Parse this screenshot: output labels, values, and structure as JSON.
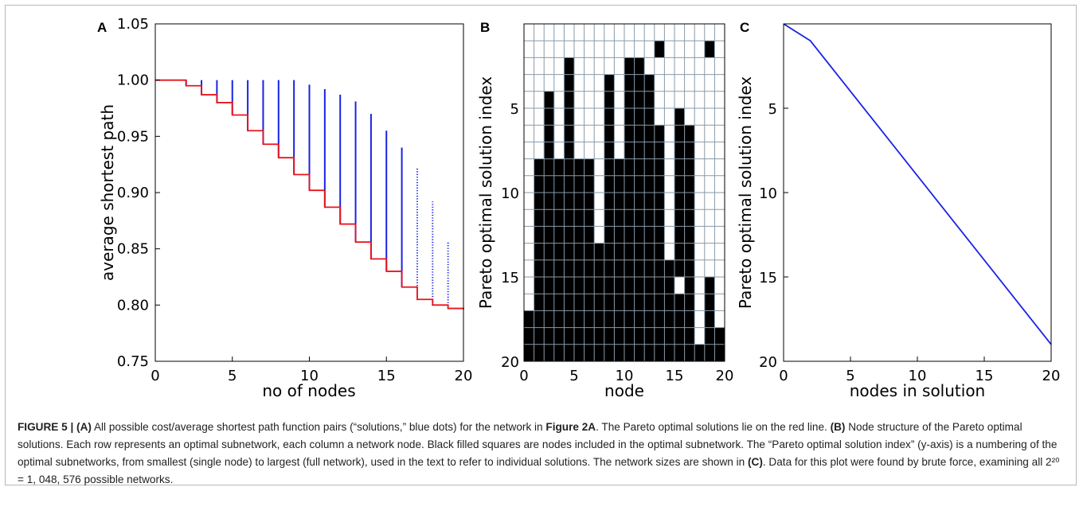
{
  "figure": {
    "panels": [
      {
        "letter": "A",
        "xlabel": "no of nodes",
        "ylabel": "average shortest path",
        "xticks": [
          "0",
          "5",
          "10",
          "15",
          "20"
        ],
        "yticks": [
          "0.75",
          "0.80",
          "0.85",
          "0.90",
          "0.95",
          "1.00",
          "1.05"
        ]
      },
      {
        "letter": "B",
        "xlabel": "node",
        "ylabel": "Pareto optimal solution index",
        "xticks": [
          "0",
          "5",
          "10",
          "15",
          "20"
        ],
        "yticks": [
          "5",
          "10",
          "15",
          "20"
        ]
      },
      {
        "letter": "C",
        "xlabel": "nodes in solution",
        "ylabel": "Pareto optimal solution index",
        "xticks": [
          "0",
          "5",
          "10",
          "15",
          "20"
        ],
        "yticks": [
          "5",
          "10",
          "15",
          "20"
        ]
      }
    ],
    "colors": {
      "pareto_line": "#e8141c",
      "solutions": "#1a22e6",
      "filled": "#000000",
      "grid": "#8a9aa8",
      "line_c": "#1a22e6"
    }
  },
  "caption": {
    "segments": [
      {
        "text": "FIGURE 5 | (A)",
        "bold": true
      },
      {
        "text": " All possible cost/average shortest path function pairs (“solutions,” blue dots) for the network in ",
        "bold": false
      },
      {
        "text": "Figure 2A",
        "bold": true
      },
      {
        "text": ". The Pareto optimal solutions lie on the red line. ",
        "bold": false
      },
      {
        "text": "(B)",
        "bold": true
      },
      {
        "text": " Node structure of the Pareto optimal solutions. Each row represents an optimal subnetwork, each column a network node. Black filled squares are nodes included in the optimal subnetwork. The “Pareto optimal solution index” (y-axis) is a numbering of the optimal subnetworks, from smallest (single node) to largest (full network), used in the text to refer to individual solutions. The network sizes are shown in ",
        "bold": false
      },
      {
        "text": "(C)",
        "bold": true
      },
      {
        "text": ". Data for this plot were found by brute force, examining all ",
        "bold": false
      },
      {
        "text": "2²⁰ = 1, 048, 576 possible networks.",
        "bold": false
      }
    ]
  },
  "chart_data": [
    {
      "type": "scatter",
      "panel": "A",
      "xlabel": "no of nodes",
      "ylabel": "average shortest path",
      "xlim": [
        0,
        20
      ],
      "ylim": [
        0.75,
        1.05
      ],
      "grid": false,
      "pareto_line": {
        "x": [
          0,
          1,
          2,
          3,
          4,
          5,
          6,
          7,
          8,
          9,
          10,
          11,
          12,
          13,
          14,
          15,
          16,
          17,
          18,
          19,
          20
        ],
        "y": [
          1.0,
          1.0,
          0.995,
          0.987,
          0.98,
          0.969,
          0.955,
          0.943,
          0.931,
          0.916,
          0.902,
          0.887,
          0.872,
          0.856,
          0.841,
          0.83,
          0.816,
          0.805,
          0.8,
          0.797,
          0.796
        ]
      },
      "solution_ranges": {
        "x": [
          1,
          2,
          3,
          4,
          5,
          6,
          7,
          8,
          9,
          10,
          11,
          12,
          13,
          14,
          15,
          16,
          17,
          18,
          19
        ],
        "ymax": [
          1.0,
          1.0,
          1.0,
          1.0,
          1.0,
          1.0,
          1.0,
          1.0,
          1.0,
          0.996,
          0.992,
          0.987,
          0.981,
          0.97,
          0.955,
          0.94,
          0.922,
          0.892,
          0.856
        ]
      }
    },
    {
      "type": "heatmap",
      "panel": "B",
      "xlabel": "node",
      "ylabel": "Pareto optimal solution index",
      "xlim": [
        0,
        20
      ],
      "ylim": [
        20,
        0
      ],
      "cols": 20,
      "rows": 20,
      "filled_columns": [
        {
          "node": 0,
          "from": 17
        },
        {
          "node": 1,
          "from": 8
        },
        {
          "node": 2,
          "from": 4
        },
        {
          "node": 3,
          "from": 8
        },
        {
          "node": 4,
          "from": 2
        },
        {
          "node": 5,
          "from": 8
        },
        {
          "node": 6,
          "from": 8
        },
        {
          "node": 7,
          "from": 8,
          "gaps": [
            [
              8,
              11
            ],
            [
              12,
              12
            ]
          ]
        },
        {
          "node": 8,
          "from": 3
        },
        {
          "node": 9,
          "from": 8
        },
        {
          "node": 10,
          "from": 2
        },
        {
          "node": 11,
          "from": 2
        },
        {
          "node": 12,
          "from": 3
        },
        {
          "node": 13,
          "from": 1,
          "gaps": [
            [
              2,
              5
            ]
          ]
        },
        {
          "node": 14,
          "from": 14
        },
        {
          "node": 15,
          "from": 5,
          "gaps": [
            [
              15,
              15
            ]
          ]
        },
        {
          "node": 16,
          "from": 6
        },
        {
          "node": 17,
          "from": 19
        },
        {
          "node": 18,
          "from": 1,
          "gaps": [
            [
              2,
              14
            ]
          ]
        },
        {
          "node": 19,
          "from": 18
        }
      ]
    },
    {
      "type": "line",
      "panel": "C",
      "xlabel": "nodes in solution",
      "ylabel": "Pareto optimal solution index",
      "xlim": [
        0,
        20
      ],
      "ylim": [
        20,
        0
      ],
      "x": [
        0,
        2,
        20
      ],
      "y": [
        0,
        1,
        19
      ]
    }
  ]
}
